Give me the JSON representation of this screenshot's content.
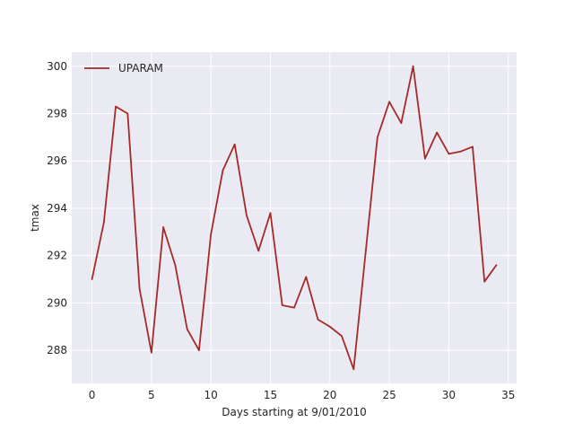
{
  "chart_data": {
    "type": "line",
    "title": "",
    "xlabel": "Days starting at 9/01/2010",
    "ylabel": "tmax",
    "xlim": [
      -1.7,
      35.7
    ],
    "ylim": [
      286.6,
      300.6
    ],
    "xticks": [
      0,
      5,
      10,
      15,
      20,
      25,
      30,
      35
    ],
    "yticks": [
      288,
      290,
      292,
      294,
      296,
      298,
      300
    ],
    "grid": true,
    "legend_position": "top-left",
    "background_color": "#eaeaf2",
    "series": [
      {
        "name": "UPARAM",
        "color": "#a52a2a",
        "x": [
          0,
          1,
          2,
          3,
          4,
          5,
          6,
          7,
          8,
          9,
          10,
          11,
          12,
          13,
          14,
          15,
          16,
          17,
          18,
          19,
          20,
          21,
          22,
          23,
          24,
          25,
          26,
          27,
          28,
          29,
          30,
          31,
          32,
          33,
          34
        ],
        "values": [
          291.0,
          293.4,
          298.3,
          298.0,
          290.6,
          287.9,
          293.2,
          291.6,
          288.9,
          288.0,
          292.9,
          295.6,
          296.7,
          293.7,
          292.2,
          293.8,
          289.9,
          289.8,
          291.1,
          289.3,
          289.0,
          288.6,
          287.2,
          292.1,
          297.0,
          298.5,
          297.6,
          300.0,
          296.1,
          297.2,
          296.3,
          296.4,
          296.6,
          290.9,
          291.6
        ]
      }
    ]
  }
}
